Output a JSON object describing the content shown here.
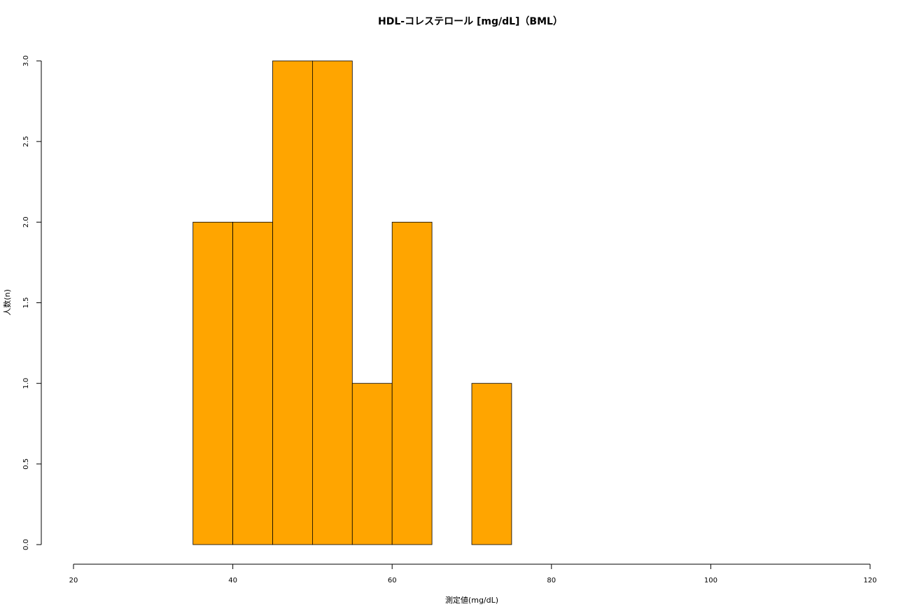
{
  "chart_data": {
    "type": "bar",
    "title": "HDL-コレステロール [mg/dL]（BML）",
    "xlabel": "測定値(mg/dL)",
    "ylabel": "人数(n)",
    "bin_edges": [
      35,
      40,
      45,
      50,
      55,
      60,
      65,
      70,
      75
    ],
    "values": [
      2,
      2,
      3,
      3,
      1,
      2,
      0,
      1
    ],
    "xlim": [
      20,
      120
    ],
    "ylim": [
      0,
      3
    ],
    "x_ticks": [
      "20",
      "40",
      "60",
      "80",
      "100",
      "120"
    ],
    "y_ticks": [
      "0.0",
      "0.5",
      "1.0",
      "1.5",
      "2.0",
      "2.5",
      "3.0"
    ],
    "bar_color": "#FFA500",
    "grid": false,
    "legend": "none"
  }
}
